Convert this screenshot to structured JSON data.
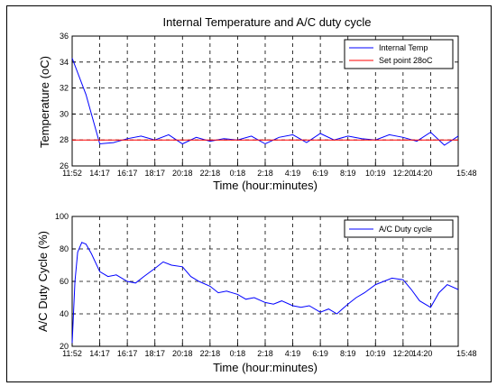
{
  "chart_data": [
    {
      "type": "line",
      "title": "Internal Temperature and A/C duty cycle",
      "xlabel": "Time (hour:minutes)",
      "ylabel": "Temperature (oC)",
      "xticks": [
        "11:52",
        "14:17",
        "16:17",
        "18:17",
        "20:18",
        "22:18",
        "0:18",
        "2:18",
        "4:19",
        "6:19",
        "8:19",
        "10:19",
        "12:20",
        "14:20",
        "15:48"
      ],
      "yticks": [
        26,
        28,
        30,
        32,
        34,
        36
      ],
      "ylim": [
        26,
        36
      ],
      "grid": true,
      "legend_position": "top-right",
      "series": [
        {
          "name": "Internal Temp",
          "color": "#0000ff",
          "x": [
            0,
            0.5,
            1,
            1.5,
            2,
            2.5,
            3,
            3.5,
            4,
            4.5,
            5,
            5.5,
            6,
            6.5,
            7,
            7.5,
            8,
            8.5,
            9,
            9.5,
            10,
            10.5,
            11,
            11.5,
            12,
            12.5,
            13,
            13.5,
            14
          ],
          "values": [
            34.3,
            31.5,
            27.7,
            27.8,
            28.1,
            28.3,
            28.0,
            28.4,
            27.7,
            28.2,
            27.9,
            28.1,
            28.0,
            28.3,
            27.7,
            28.2,
            28.4,
            27.8,
            28.5,
            28.0,
            28.3,
            28.1,
            28.0,
            28.4,
            28.2,
            27.9,
            28.6,
            27.6,
            28.3
          ]
        },
        {
          "name": "Set point 28oC",
          "color": "#ff0000",
          "x": [
            0,
            14
          ],
          "values": [
            28,
            28
          ]
        }
      ]
    },
    {
      "type": "line",
      "title": "",
      "xlabel": "Time (hour:minutes)",
      "ylabel": "A/C Duty Cycle (%)",
      "xticks": [
        "11:52",
        "14:17",
        "16:17",
        "18:17",
        "20:18",
        "22:18",
        "0:18",
        "2:18",
        "4:19",
        "6:19",
        "8:19",
        "10:19",
        "12:20",
        "14:20",
        "15:48"
      ],
      "yticks": [
        20,
        40,
        60,
        80,
        100
      ],
      "ylim": [
        20,
        100
      ],
      "grid": true,
      "legend_position": "top-right",
      "series": [
        {
          "name": "A/C Duty cycle",
          "color": "#0000ff",
          "x": [
            0,
            0.1,
            0.2,
            0.35,
            0.5,
            0.7,
            1,
            1.3,
            1.6,
            2,
            2.3,
            2.6,
            3,
            3.3,
            3.6,
            4,
            4.3,
            4.6,
            5,
            5.3,
            5.6,
            6,
            6.3,
            6.6,
            7,
            7.3,
            7.6,
            8,
            8.3,
            8.6,
            9,
            9.3,
            9.6,
            10,
            10.3,
            10.6,
            11,
            11.3,
            11.6,
            12,
            12.3,
            12.6,
            13,
            13.3,
            13.6,
            14
          ],
          "values": [
            22,
            60,
            78,
            84,
            83,
            77,
            66,
            63,
            64,
            60,
            59,
            63,
            68,
            72,
            70,
            69,
            63,
            60,
            57,
            53,
            54,
            52,
            49,
            50,
            47,
            46,
            48,
            45,
            44,
            45,
            41,
            43,
            40,
            46,
            50,
            53,
            58,
            60,
            62,
            61,
            55,
            48,
            44,
            53,
            58,
            55
          ]
        }
      ]
    }
  ],
  "legend_labels": {
    "top": [
      "Internal Temp",
      "Set point 28oC"
    ],
    "bottom": [
      "A/C Duty cycle"
    ]
  }
}
